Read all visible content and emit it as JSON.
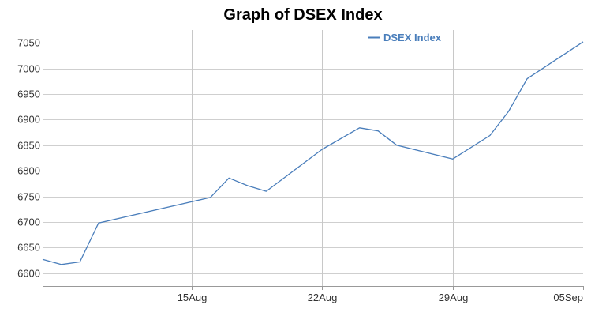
{
  "chart_data": {
    "type": "line",
    "title": "Graph of DSEX Index",
    "xlabel": "",
    "ylabel": "",
    "x_range": [
      "2019-08-07",
      "2019-09-05"
    ],
    "ylim": [
      6575,
      7075
    ],
    "y_ticks": [
      6600,
      6650,
      6700,
      6750,
      6800,
      6850,
      6900,
      6950,
      7000,
      7050
    ],
    "x_ticks": [
      {
        "date": "2019-08-15",
        "label": "15Aug"
      },
      {
        "date": "2019-08-22",
        "label": "22Aug"
      },
      {
        "date": "2019-08-29",
        "label": "29Aug"
      },
      {
        "date": "2019-09-05",
        "label": "05Sep"
      }
    ],
    "grid": true,
    "legend_position": "top-right",
    "series": [
      {
        "name": "DSEX Index",
        "color": "#4a7ebb",
        "points": [
          {
            "x": "2019-08-07",
            "y": 6627
          },
          {
            "x": "2019-08-08",
            "y": 6617
          },
          {
            "x": "2019-08-09",
            "y": 6622
          },
          {
            "x": "2019-08-10",
            "y": 6698
          },
          {
            "x": "2019-08-16",
            "y": 6748
          },
          {
            "x": "2019-08-17",
            "y": 6786
          },
          {
            "x": "2019-08-18",
            "y": 6771
          },
          {
            "x": "2019-08-19",
            "y": 6760
          },
          {
            "x": "2019-08-22",
            "y": 6842
          },
          {
            "x": "2019-08-24",
            "y": 6884
          },
          {
            "x": "2019-08-25",
            "y": 6878
          },
          {
            "x": "2019-08-26",
            "y": 6850
          },
          {
            "x": "2019-08-29",
            "y": 6823
          },
          {
            "x": "2019-08-31",
            "y": 6869
          },
          {
            "x": "2019-09-01",
            "y": 6916
          },
          {
            "x": "2019-09-02",
            "y": 6980
          },
          {
            "x": "2019-09-05",
            "y": 7052
          }
        ]
      }
    ]
  }
}
